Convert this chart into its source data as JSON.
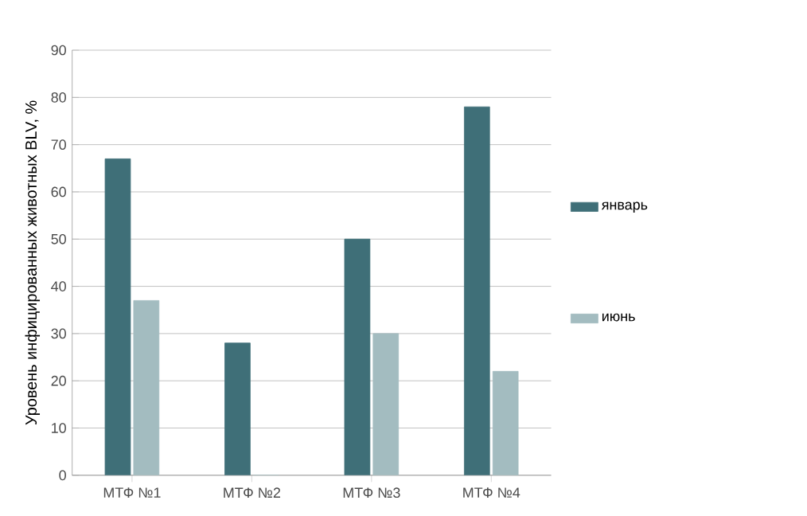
{
  "chart_data": {
    "type": "bar",
    "ylabel": "Уровень инфицированных животных BLV, %",
    "categories": [
      "МТФ №1",
      "МТФ №2",
      "МТФ №3",
      "МТФ №4"
    ],
    "series": [
      {
        "name": "январь",
        "color": "#3f6f78",
        "values": [
          67,
          28,
          50,
          78
        ]
      },
      {
        "name": "июнь",
        "color": "#a3bcc0",
        "values": [
          37,
          0,
          30,
          22
        ]
      }
    ],
    "ylim": [
      0,
      90
    ],
    "yticks": [
      0,
      10,
      20,
      30,
      40,
      50,
      60,
      70,
      80,
      90
    ],
    "grid": "y",
    "legend": "right"
  }
}
